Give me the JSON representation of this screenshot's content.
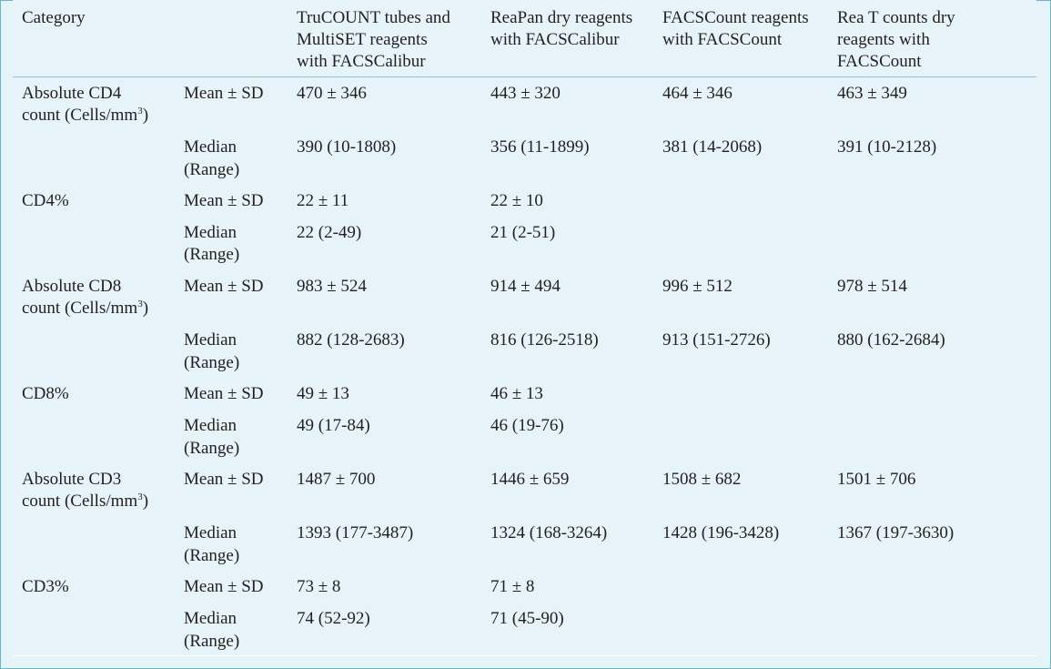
{
  "header": {
    "category": "Category",
    "col1": [
      "TruCOUNT tubes and",
      "MultiSET reagents",
      "with FACSCalibur"
    ],
    "col2": [
      "ReaPan dry reagents",
      "with FACSCalibur"
    ],
    "col3": [
      "FACSCount reagents",
      "with FACSCount"
    ],
    "col4": [
      "Rea T counts dry",
      "reagents with",
      "FACSCount"
    ]
  },
  "rows": [
    {
      "cat": [
        "Absolute CD4",
        "count (Cells/mm"
      ],
      "cat_sup": "3",
      "cat_end": ")",
      "mean_label": "Mean ± SD",
      "mean": [
        "470 ± 346",
        "443 ± 320",
        "464 ± 346",
        "463 ± 349"
      ],
      "median_label": [
        "Median",
        "(Range)"
      ],
      "median": [
        "390 (10-1808)",
        "356 (11-1899)",
        "381 (14-2068)",
        "391 (10-2128)"
      ]
    },
    {
      "cat": [
        "CD4%"
      ],
      "mean_label": "Mean ± SD",
      "mean": [
        "22 ± 11",
        "22 ± 10",
        "",
        ""
      ],
      "median_label": [
        "Median",
        "(Range)"
      ],
      "median": [
        "22 (2-49)",
        "21 (2-51)",
        "",
        ""
      ]
    },
    {
      "cat": [
        "Absolute CD8",
        "count (Cells/mm"
      ],
      "cat_sup": "3",
      "cat_end": ")",
      "mean_label": "Mean ± SD",
      "mean": [
        "983 ± 524",
        "914 ± 494",
        "996 ± 512",
        "978 ± 514"
      ],
      "median_label": [
        "Median",
        "(Range)"
      ],
      "median": [
        "882 (128-2683)",
        "816 (126-2518)",
        "913 (151-2726)",
        "880 (162-2684)"
      ]
    },
    {
      "cat": [
        "CD8%"
      ],
      "mean_label": "Mean ± SD",
      "mean": [
        "49 ± 13",
        "46 ± 13",
        "",
        ""
      ],
      "median_label": [
        "Median",
        "(Range)"
      ],
      "median": [
        "49 (17-84)",
        "46 (19-76)",
        "",
        ""
      ]
    },
    {
      "cat": [
        "Absolute CD3",
        "count (Cells/mm"
      ],
      "cat_sup": "3",
      "cat_end": ")",
      "mean_label": "Mean ± SD",
      "mean": [
        "1487 ± 700",
        "1446 ± 659",
        "1508 ± 682",
        "1501 ± 706"
      ],
      "median_label": [
        "Median",
        "(Range)"
      ],
      "median": [
        "1393 (177-3487)",
        "1324 (168-3264)",
        "1428 (196-3428)",
        "1367 (197-3630)"
      ]
    },
    {
      "cat": [
        "CD3%"
      ],
      "mean_label": "Mean ± SD",
      "mean": [
        "73 ± 8",
        "71 ± 8",
        "",
        ""
      ],
      "median_label": [
        "Median",
        "(Range)"
      ],
      "median": [
        "74 (52-92)",
        "71 (45-90)",
        "",
        ""
      ]
    }
  ]
}
